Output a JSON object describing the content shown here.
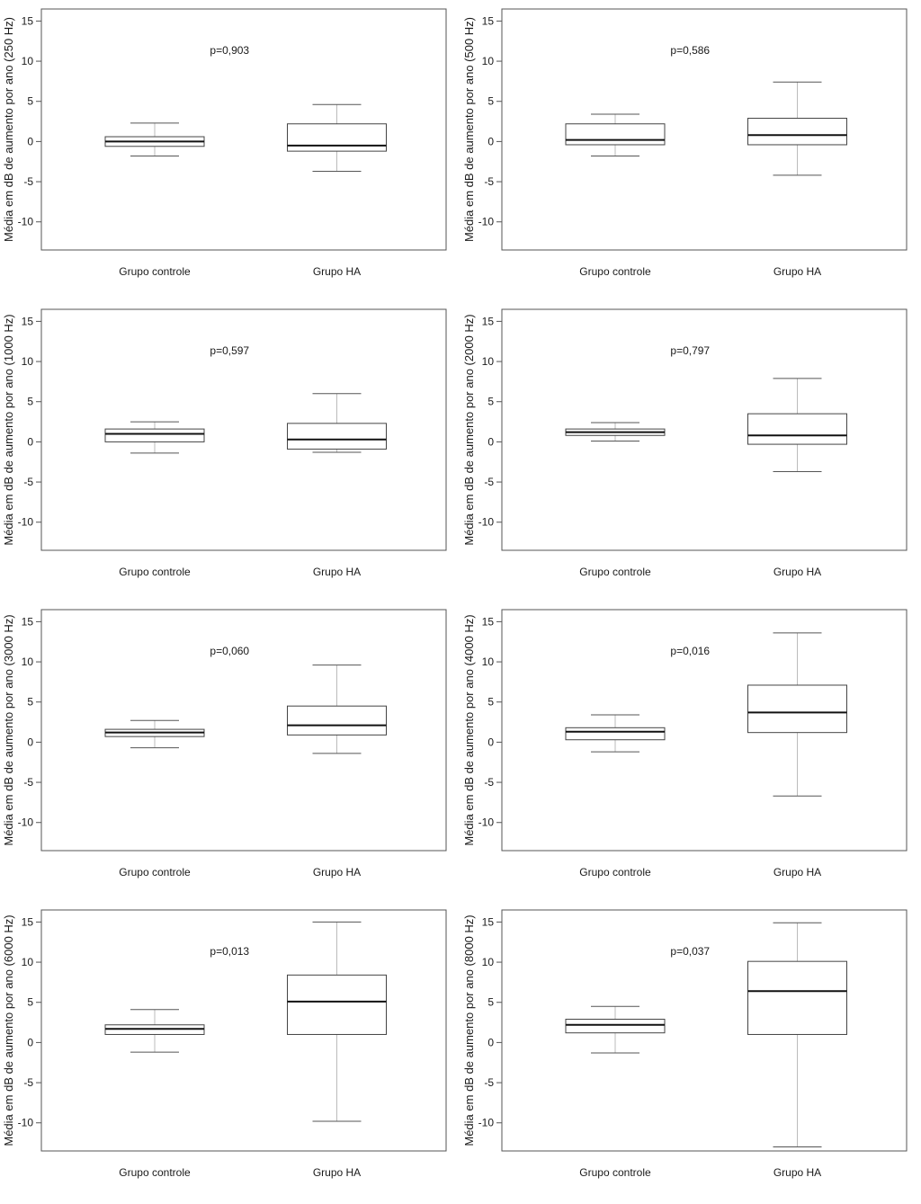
{
  "page": {
    "background": "#ffffff"
  },
  "chart_data": {
    "type": "boxplot",
    "layout": {
      "rows": 4,
      "cols": 2,
      "legend": "none",
      "grid": false
    },
    "yticks": [
      15,
      10,
      5,
      0,
      -5,
      -10
    ],
    "ylim": [
      -13.5,
      16.5
    ],
    "categories": [
      "Grupo controle",
      "Grupo HA"
    ],
    "colors": {
      "frame": "#555555",
      "box_stroke": "#444444",
      "box_fill": "#ffffff",
      "median": "#111111",
      "whisker_line": "#bbbbbb",
      "whisker_cap": "#555555",
      "text": "#1a1a1a"
    },
    "panels": [
      {
        "ylabel": "Média em dB de aumento por ano (250 Hz)",
        "p_label": "p=0,903",
        "boxes": [
          {
            "category": "Grupo controle",
            "whisker_low": -1.8,
            "q1": -0.6,
            "median": 0.0,
            "q3": 0.6,
            "whisker_high": 2.3
          },
          {
            "category": "Grupo HA",
            "whisker_low": -3.7,
            "q1": -1.2,
            "median": -0.5,
            "q3": 2.2,
            "whisker_high": 4.6
          }
        ]
      },
      {
        "ylabel": "Média em dB de aumento por ano (500 Hz)",
        "p_label": "p=0,586",
        "boxes": [
          {
            "category": "Grupo controle",
            "whisker_low": -1.8,
            "q1": -0.4,
            "median": 0.2,
            "q3": 2.2,
            "whisker_high": 3.4
          },
          {
            "category": "Grupo HA",
            "whisker_low": -4.2,
            "q1": -0.4,
            "median": 0.8,
            "q3": 2.9,
            "whisker_high": 7.4
          }
        ]
      },
      {
        "ylabel": "Média em dB de aumento por ano (1000 Hz)",
        "p_label": "p=0,597",
        "boxes": [
          {
            "category": "Grupo controle",
            "whisker_low": -1.4,
            "q1": 0.0,
            "median": 1.0,
            "q3": 1.6,
            "whisker_high": 2.5
          },
          {
            "category": "Grupo HA",
            "whisker_low": -1.3,
            "q1": -0.9,
            "median": 0.3,
            "q3": 2.3,
            "whisker_high": 6.0
          }
        ]
      },
      {
        "ylabel": "Média em dB de aumento por ano (2000 Hz)",
        "p_label": "p=0,797",
        "boxes": [
          {
            "category": "Grupo controle",
            "whisker_low": 0.1,
            "q1": 0.8,
            "median": 1.2,
            "q3": 1.6,
            "whisker_high": 2.4
          },
          {
            "category": "Grupo HA",
            "whisker_low": -3.7,
            "q1": -0.3,
            "median": 0.8,
            "q3": 3.5,
            "whisker_high": 7.9
          }
        ]
      },
      {
        "ylabel": "Média em dB de aumento por ano (3000 Hz)",
        "p_label": "p=0,060",
        "boxes": [
          {
            "category": "Grupo controle",
            "whisker_low": -0.7,
            "q1": 0.7,
            "median": 1.2,
            "q3": 1.6,
            "whisker_high": 2.7
          },
          {
            "category": "Grupo HA",
            "whisker_low": -1.4,
            "q1": 0.9,
            "median": 2.1,
            "q3": 4.5,
            "whisker_high": 9.6
          }
        ]
      },
      {
        "ylabel": "Média em dB de aumento por ano (4000 Hz)",
        "p_label": "p=0,016",
        "boxes": [
          {
            "category": "Grupo controle",
            "whisker_low": -1.2,
            "q1": 0.3,
            "median": 1.3,
            "q3": 1.8,
            "whisker_high": 3.4
          },
          {
            "category": "Grupo HA",
            "whisker_low": -6.7,
            "q1": 1.2,
            "median": 3.7,
            "q3": 7.1,
            "whisker_high": 13.6
          }
        ]
      },
      {
        "ylabel": "Média em dB de aumento por ano (6000 Hz)",
        "p_label": "p=0,013",
        "boxes": [
          {
            "category": "Grupo controle",
            "whisker_low": -1.2,
            "q1": 1.0,
            "median": 1.7,
            "q3": 2.2,
            "whisker_high": 4.1
          },
          {
            "category": "Grupo HA",
            "whisker_low": -9.8,
            "q1": 1.0,
            "median": 5.1,
            "q3": 8.4,
            "whisker_high": 15.0
          }
        ]
      },
      {
        "ylabel": "Média em dB de aumento por ano (8000 Hz)",
        "p_label": "p=0,037",
        "boxes": [
          {
            "category": "Grupo controle",
            "whisker_low": -1.3,
            "q1": 1.2,
            "median": 2.2,
            "q3": 2.9,
            "whisker_high": 4.5
          },
          {
            "category": "Grupo HA",
            "whisker_low": -13.0,
            "q1": 1.0,
            "median": 6.4,
            "q3": 10.1,
            "whisker_high": 14.9
          }
        ]
      }
    ]
  }
}
